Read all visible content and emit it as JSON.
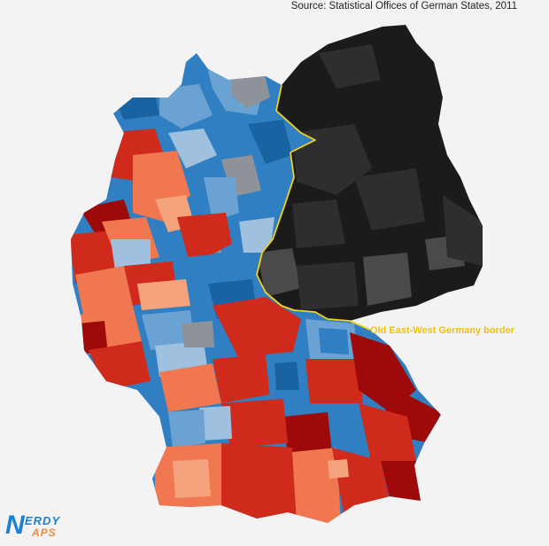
{
  "source_text": "Source: Statistical Offices of German States, 2011",
  "border_label": "Old East-West Germany border",
  "logo": {
    "line1": "ERDY",
    "line2": "APS",
    "initial": "N"
  },
  "colors": {
    "background": "#f3f3f3",
    "east_dark": "#1b1b1b",
    "east_mid": "#2e2e2e",
    "east_grey": "#4a4a4a",
    "blue_dark": "#1a63a3",
    "blue": "#2f7fc2",
    "blue_light": "#6aa3d3",
    "blue_pale": "#9fc0df",
    "grey": "#8e9399",
    "red_dark": "#9e0a0a",
    "red": "#cf2a1c",
    "orange": "#f0774f",
    "peach": "#f4a37c",
    "border_line": "#f0d21a"
  },
  "icons": {
    "map": "germany-choropleth-map",
    "border": "east-west-border-line"
  }
}
